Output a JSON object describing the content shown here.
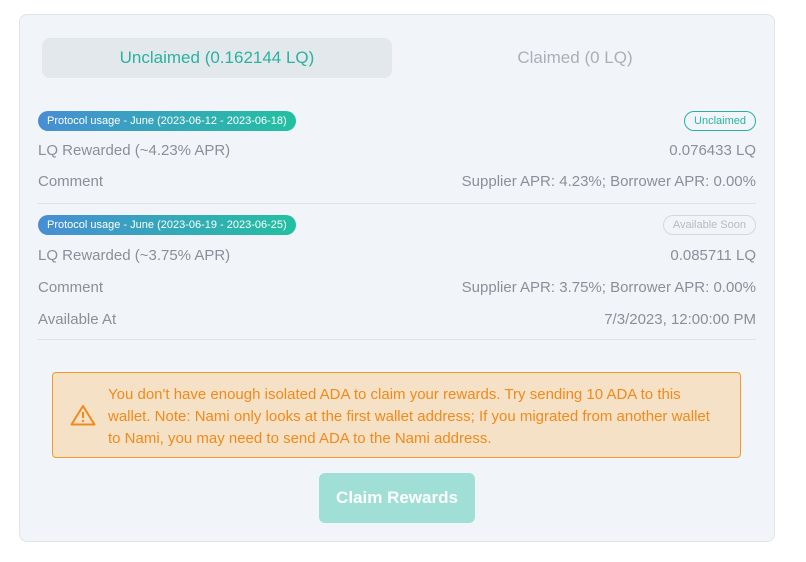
{
  "tabs": {
    "unclaimed": "Unclaimed (0.162144 LQ)",
    "claimed": "Claimed (0 LQ)"
  },
  "rewards": [
    {
      "period": "Protocol usage - June (2023-06-12 - 2023-06-18)",
      "status": "Unclaimed",
      "rows": [
        {
          "label": "LQ Rewarded (~4.23% APR)",
          "value": "0.076433 LQ"
        },
        {
          "label": "Comment",
          "value": "Supplier APR: 4.23%; Borrower APR: 0.00%"
        }
      ]
    },
    {
      "period": "Protocol usage - June (2023-06-19 - 2023-06-25)",
      "status": "Available Soon",
      "rows": [
        {
          "label": "LQ Rewarded (~3.75% APR)",
          "value": "0.085711 LQ"
        },
        {
          "label": "Comment",
          "value": "Supplier APR: 3.75%; Borrower APR: 0.00%"
        },
        {
          "label": "Available At",
          "value": "7/3/2023, 12:00:00 PM"
        }
      ]
    }
  ],
  "warning": "You don't have enough isolated ADA to claim your rewards. Try sending 10 ADA to this wallet. Note: Nami only looks at the first wallet address; If you migrated from another wallet to Nami, you may need to send ADA to the Nami address.",
  "claim_button": "Claim Rewards",
  "colors": {
    "accent": "#2bb1a0",
    "warning": "#f08a1c"
  }
}
